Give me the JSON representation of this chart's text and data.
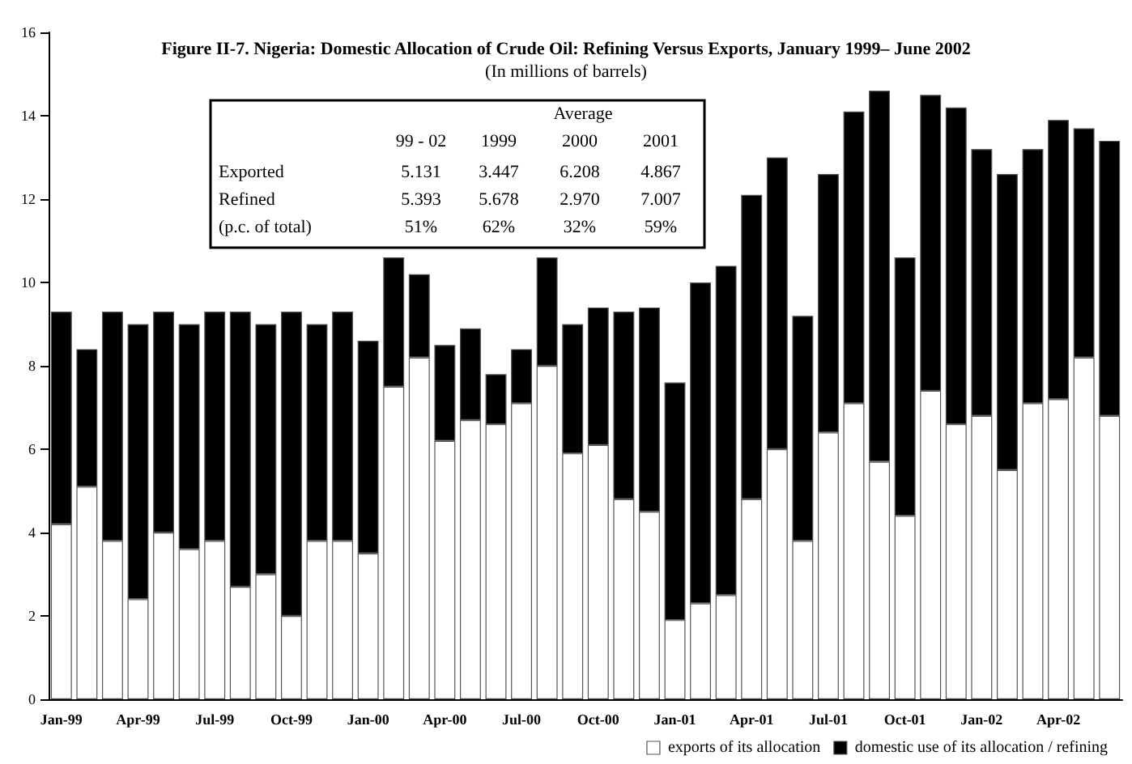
{
  "chart_data": {
    "type": "bar",
    "stacked": true,
    "title": "Figure II-7. Nigeria: Domestic Allocation of Crude Oil: Refining Versus Exports, January 1999– June 2002",
    "subtitle": "(In millions of barrels)",
    "categories": [
      "Jan-99",
      null,
      null,
      "Apr-99",
      null,
      null,
      "Jul-99",
      null,
      null,
      "Oct-99",
      null,
      null,
      "Jan-00",
      null,
      null,
      "Apr-00",
      null,
      null,
      "Jul-00",
      null,
      null,
      "Oct-00",
      null,
      null,
      "Jan-01",
      null,
      null,
      "Apr-01",
      null,
      null,
      "Jul-01",
      null,
      null,
      "Oct-01",
      null,
      null,
      "Jan-02",
      null,
      null,
      "Apr-02",
      null,
      null
    ],
    "series": [
      {
        "name": "exports of its allocation",
        "color": "#ffffff",
        "values": [
          4.2,
          5.1,
          3.8,
          2.4,
          4.0,
          3.6,
          3.8,
          2.7,
          3.0,
          2.0,
          3.8,
          3.8,
          3.5,
          7.5,
          8.2,
          6.2,
          6.7,
          6.6,
          7.1,
          8.0,
          5.9,
          6.1,
          4.8,
          4.5,
          1.9,
          2.3,
          2.5,
          4.8,
          6.0,
          3.8,
          6.4,
          7.1,
          5.7,
          4.4,
          7.4,
          6.6,
          6.8,
          5.5,
          7.1,
          7.2,
          8.2,
          6.8
        ]
      },
      {
        "name": "domestic use of its allocation / refining",
        "color": "#000000",
        "values": [
          5.1,
          3.3,
          5.5,
          6.6,
          5.3,
          5.4,
          5.5,
          6.6,
          6.0,
          7.3,
          5.2,
          5.5,
          5.1,
          3.1,
          2.0,
          2.3,
          2.2,
          1.2,
          1.3,
          2.6,
          3.1,
          3.3,
          4.5,
          4.9,
          5.7,
          7.7,
          7.9,
          7.3,
          7.0,
          5.4,
          6.2,
          7.0,
          8.9,
          6.2,
          7.1,
          7.6,
          6.4,
          7.1,
          6.1,
          6.7,
          5.5,
          6.6
        ]
      }
    ],
    "ylim": [
      0,
      16
    ],
    "yticks": [
      0,
      2,
      4,
      6,
      8,
      10,
      12,
      14,
      16
    ],
    "legend": "bottom right",
    "annotations": [
      "Average",
      "99 - 02",
      "1999",
      "2000",
      "2001",
      "Exported",
      "5.131",
      "3.447",
      "6.208",
      "4.867",
      "Refined",
      "5.393",
      "5.678",
      "2.970",
      "7.007",
      "(p.c. of total)",
      "51%",
      "62%",
      "32%",
      "59%"
    ]
  }
}
